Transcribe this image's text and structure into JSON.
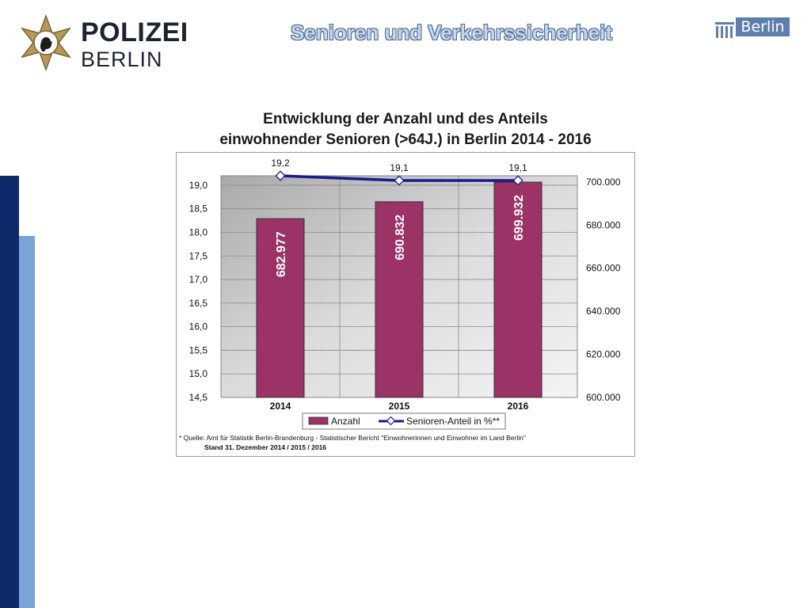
{
  "header": {
    "left_logo": {
      "word1": "POLIZEI",
      "word2": "BERLIN",
      "emblem": "police-star-bear-icon"
    },
    "title": "Senioren und Verkehrssicherheit",
    "right_logo": {
      "text": "Berlin",
      "emblem": "brandenburg-gate-icon"
    }
  },
  "colors": {
    "bar": "#9b3366",
    "line": "#1a1a8c",
    "plot_bg": "#c8c8c8",
    "title_text": "#c8d7ea",
    "accent_dark": "#0d2a6b",
    "accent_light": "#7ba3d6"
  },
  "chart_data": {
    "type": "bar",
    "title_lines": [
      "Entwicklung der Anzahl und des Anteils",
      "einwohnender Senioren (>64J.) in Berlin 2014 - 2016"
    ],
    "categories": [
      "2014",
      "2015",
      "2016"
    ],
    "series": [
      {
        "name": "Anzahl",
        "type": "bar",
        "axis": "right",
        "values": [
          682977,
          690832,
          699932
        ],
        "labels": [
          "682.977",
          "690.832",
          "699.932"
        ]
      },
      {
        "name": "Senioren-Anteil in %**",
        "type": "line",
        "axis": "left",
        "values": [
          19.2,
          19.1,
          19.1
        ],
        "labels": [
          "19,2",
          "19,1",
          "19,1"
        ]
      }
    ],
    "left_axis": {
      "ylim": [
        14.5,
        19.0
      ],
      "ticks": [
        "19,0",
        "18,5",
        "18,0",
        "17,5",
        "17,0",
        "16,5",
        "16,0",
        "15,5",
        "15,0",
        "14,5"
      ],
      "tick_values": [
        19.0,
        18.5,
        18.0,
        17.5,
        17.0,
        16.5,
        16.0,
        15.5,
        15.0,
        14.5
      ]
    },
    "right_axis": {
      "ylim": [
        600000,
        700000
      ],
      "ticks": [
        "700.000",
        "680.000",
        "660.000",
        "640.000",
        "620.000",
        "600.000"
      ],
      "tick_values": [
        700000,
        680000,
        660000,
        640000,
        620000,
        600000
      ]
    },
    "grid": true,
    "legend_position": "bottom",
    "footnote_line1": "* Quelle: Amt für Statistik Berlin-Brandenburg - Statistischer Bericht \"Einwohnerinnen und Einwohner im Land Berlin\"",
    "footnote_line2": "Stand 31. Dezember    2014 / 2015 / 2016"
  }
}
